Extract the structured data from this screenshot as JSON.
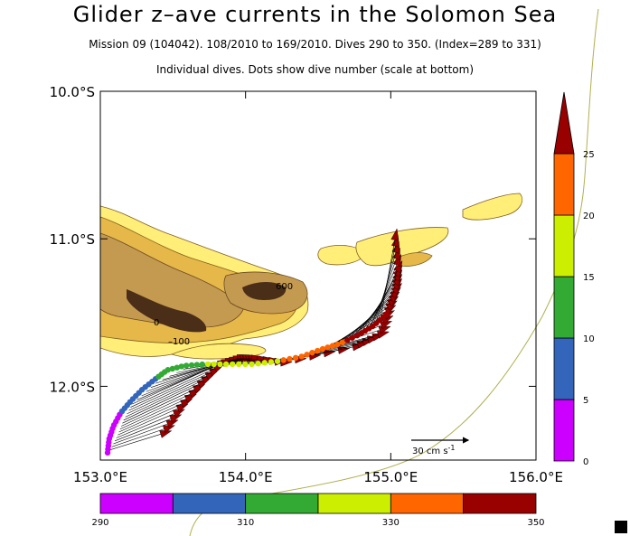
{
  "title": "Glider z–ave currents in the Solomon Sea",
  "subtitle1": "Mission 09 (104042). 108/2010 to 169/2010. Dives 290 to 350. (Index=289 to 331)",
  "subtitle2": "Individual dives. Dots show dive number (scale at bottom)",
  "colors": {
    "magenta": "#cc00ff",
    "blue": "#3366bb",
    "green": "#33aa33",
    "yellow": "#ccee00",
    "orange": "#ff6600",
    "darkred": "#990000",
    "land_light": "#ffee77",
    "land_mid": "#e6b84a",
    "land_tan": "#c49a50",
    "land_dark": "#5a3a20"
  },
  "chart_data": {
    "type": "map",
    "title": "Glider z–ave currents in the Solomon Sea",
    "xlim": [
      153.0,
      156.0
    ],
    "ylim": [
      -12.5,
      -10.0
    ],
    "x_ticks": [
      {
        "value": 153.0,
        "label": "153.0°E"
      },
      {
        "value": 154.0,
        "label": "154.0°E"
      },
      {
        "value": 155.0,
        "label": "155.0°E"
      },
      {
        "value": 156.0,
        "label": "156.0°E"
      }
    ],
    "y_ticks": [
      {
        "value": -10.0,
        "label": "10.0°S"
      },
      {
        "value": -11.0,
        "label": "11.0°S"
      },
      {
        "value": -12.0,
        "label": "12.0°S"
      }
    ],
    "contour_labels": [
      "600",
      "0",
      "–100"
    ],
    "scale_arrow_label": "30 cm s",
    "scale_arrow_exponent": "-1",
    "right_colorbar": {
      "ticks": [
        "0",
        "5",
        "10",
        "15",
        "20",
        "25"
      ],
      "colors": [
        "#cc00ff",
        "#3366bb",
        "#33aa33",
        "#ccee00",
        "#ff6600",
        "#990000"
      ]
    },
    "bottom_colorbar": {
      "tick_labels": [
        "290",
        "310",
        "330",
        "350"
      ],
      "colors": [
        "#cc00ff",
        "#3366bb",
        "#33aa33",
        "#ccee00",
        "#ff6600",
        "#990000"
      ]
    },
    "track": [
      [
        153.05,
        -12.45
      ],
      [
        153.06,
        -12.36
      ],
      [
        153.09,
        -12.27
      ],
      [
        153.14,
        -12.18
      ],
      [
        153.21,
        -12.1
      ],
      [
        153.29,
        -12.02
      ],
      [
        153.38,
        -11.95
      ],
      [
        153.46,
        -11.89
      ],
      [
        153.58,
        -11.86
      ],
      [
        153.72,
        -11.85
      ],
      [
        153.88,
        -11.85
      ],
      [
        154.05,
        -11.85
      ],
      [
        154.22,
        -11.83
      ],
      [
        154.38,
        -11.8
      ],
      [
        154.52,
        -11.75
      ],
      [
        154.65,
        -11.71
      ],
      [
        154.78,
        -11.65
      ],
      [
        154.88,
        -11.59
      ],
      [
        154.97,
        -11.51
      ]
    ],
    "vectors": [
      {
        "x": 153.07,
        "y": -12.43,
        "u": 0.29,
        "v": 0.09
      },
      {
        "x": 153.12,
        "y": -12.33,
        "u": 0.34,
        "v": 0.15
      },
      {
        "x": 153.16,
        "y": -12.23,
        "u": 0.42,
        "v": 0.2
      },
      {
        "x": 153.22,
        "y": -12.12,
        "u": 0.48,
        "v": 0.22
      },
      {
        "x": 153.38,
        "y": -11.98,
        "u": 0.46,
        "v": 0.14
      },
      {
        "x": 153.62,
        "y": -11.86,
        "u": 0.35,
        "v": 0.04
      },
      {
        "x": 153.95,
        "y": -11.85,
        "u": 0.25,
        "v": 0.01
      },
      {
        "x": 154.25,
        "y": -11.83,
        "u": 0.4,
        "v": 0.08
      },
      {
        "x": 154.45,
        "y": -11.77,
        "u": 0.38,
        "v": 0.1
      },
      {
        "x": 154.58,
        "y": -11.73,
        "u": 0.32,
        "v": 0.2
      },
      {
        "x": 154.72,
        "y": -11.68,
        "u": 0.25,
        "v": 0.27
      },
      {
        "x": 154.85,
        "y": -11.6,
        "u": 0.16,
        "v": 0.32
      },
      {
        "x": 154.93,
        "y": -11.54,
        "u": 0.08,
        "v": 0.44
      }
    ]
  }
}
